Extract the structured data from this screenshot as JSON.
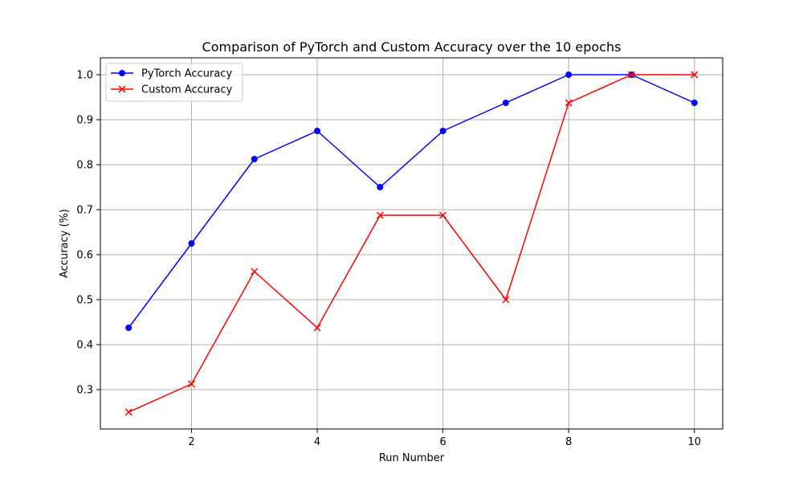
{
  "chart_data": {
    "type": "line",
    "title": "Comparison of PyTorch and Custom Accuracy over the 10 epochs",
    "xlabel": "Run Number",
    "ylabel": "Accuracy (%)",
    "x": [
      1,
      2,
      3,
      4,
      5,
      6,
      7,
      8,
      9,
      10
    ],
    "xlim": [
      0.55,
      10.45
    ],
    "ylim": [
      0.2125,
      1.0375
    ],
    "xticks": [
      2,
      4,
      6,
      8,
      10
    ],
    "yticks": [
      0.3,
      0.4,
      0.5,
      0.6,
      0.7,
      0.8,
      0.9,
      1.0
    ],
    "xtick_labels": [
      "2",
      "4",
      "6",
      "8",
      "10"
    ],
    "ytick_labels": [
      "0.3",
      "0.4",
      "0.5",
      "0.6",
      "0.7",
      "0.8",
      "0.9",
      "1.0"
    ],
    "grid": true,
    "legend_position": "top-left",
    "series": [
      {
        "name": "PyTorch Accuracy",
        "color": "#0000ff",
        "marker": "circle",
        "values": [
          0.4375,
          0.625,
          0.8125,
          0.875,
          0.75,
          0.875,
          0.9375,
          1.0,
          1.0,
          0.9375
        ]
      },
      {
        "name": "Custom Accuracy",
        "color": "#ff0000",
        "marker": "x",
        "values": [
          0.25,
          0.3125,
          0.5625,
          0.4375,
          0.6875,
          0.6875,
          0.5,
          0.9375,
          1.0,
          1.0
        ]
      }
    ]
  }
}
